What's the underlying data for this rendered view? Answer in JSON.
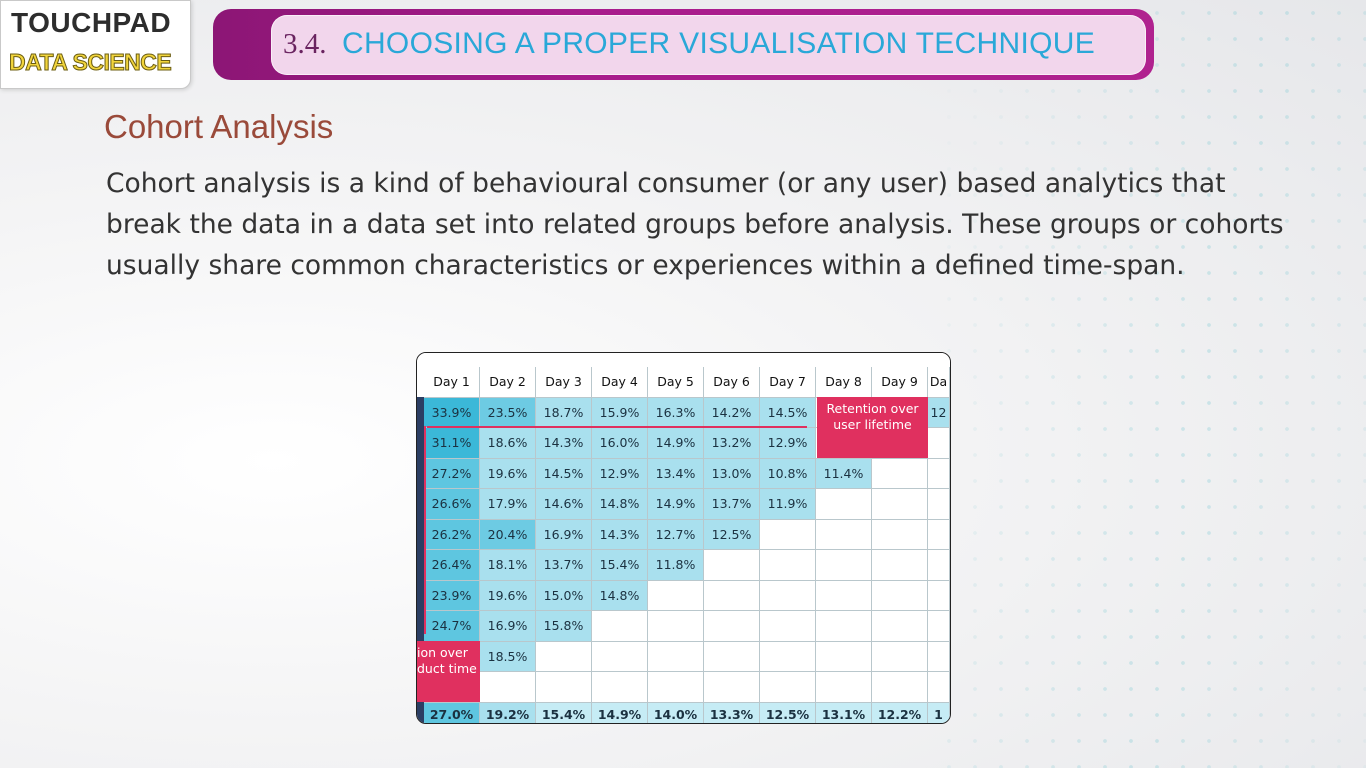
{
  "header": {
    "logo_top": "TOUCHPAD",
    "logo_bottom": "DATA SCIENCE",
    "section_number": "3.4.",
    "section_title": "CHOOSING A PROPER VISUALISATION TECHNIQUE"
  },
  "content": {
    "title": "Cohort Analysis",
    "paragraph": "Cohort analysis is a kind of behavioural consumer (or any user) based analytics that break the data in a data set into related groups before analysis. These groups or cohorts usually share common characteristics or experiences within a defined time-span."
  },
  "table": {
    "columns": [
      "Day 1",
      "Day 2",
      "Day 3",
      "Day 4",
      "Day 5",
      "Day 6",
      "Day 7",
      "Day 8",
      "Day 9",
      "Da"
    ],
    "rows": [
      [
        "33.9%",
        "23.5%",
        "18.7%",
        "15.9%",
        "16.3%",
        "14.2%",
        "14.5%",
        "",
        "",
        "12"
      ],
      [
        "31.1%",
        "18.6%",
        "14.3%",
        "16.0%",
        "14.9%",
        "13.2%",
        "12.9%",
        "",
        "",
        ""
      ],
      [
        "27.2%",
        "19.6%",
        "14.5%",
        "12.9%",
        "13.4%",
        "13.0%",
        "10.8%",
        "11.4%",
        "",
        ""
      ],
      [
        "26.6%",
        "17.9%",
        "14.6%",
        "14.8%",
        "14.9%",
        "13.7%",
        "11.9%",
        "",
        "",
        ""
      ],
      [
        "26.2%",
        "20.4%",
        "16.9%",
        "14.3%",
        "12.7%",
        "12.5%",
        "",
        "",
        "",
        ""
      ],
      [
        "26.4%",
        "18.1%",
        "13.7%",
        "15.4%",
        "11.8%",
        "",
        "",
        "",
        "",
        ""
      ],
      [
        "23.9%",
        "19.6%",
        "15.0%",
        "14.8%",
        "",
        "",
        "",
        "",
        "",
        ""
      ],
      [
        "24.7%",
        "16.9%",
        "15.8%",
        "",
        "",
        "",
        "",
        "",
        "",
        ""
      ],
      [
        "",
        "18.5%",
        "",
        "",
        "",
        "",
        "",
        "",
        "",
        ""
      ],
      [
        "",
        "",
        "",
        "",
        "",
        "",
        "",
        "",
        "",
        ""
      ]
    ],
    "totals": [
      "27.0%",
      "19.2%",
      "15.4%",
      "14.9%",
      "14.0%",
      "13.3%",
      "12.5%",
      "13.1%",
      "12.2%",
      "1"
    ],
    "callout_user": "Retention over user lifetime",
    "callout_product": "ion over duct time"
  },
  "colors": {
    "banner": "#a81c8c",
    "banner_inner": "#f2d6ec",
    "banner_title": "#2aa8d8",
    "section_title": "#9a4a3a",
    "callout": "#e0305f",
    "cell_light": "#a9e0ee",
    "cell_dark": "#3bb8d8"
  }
}
